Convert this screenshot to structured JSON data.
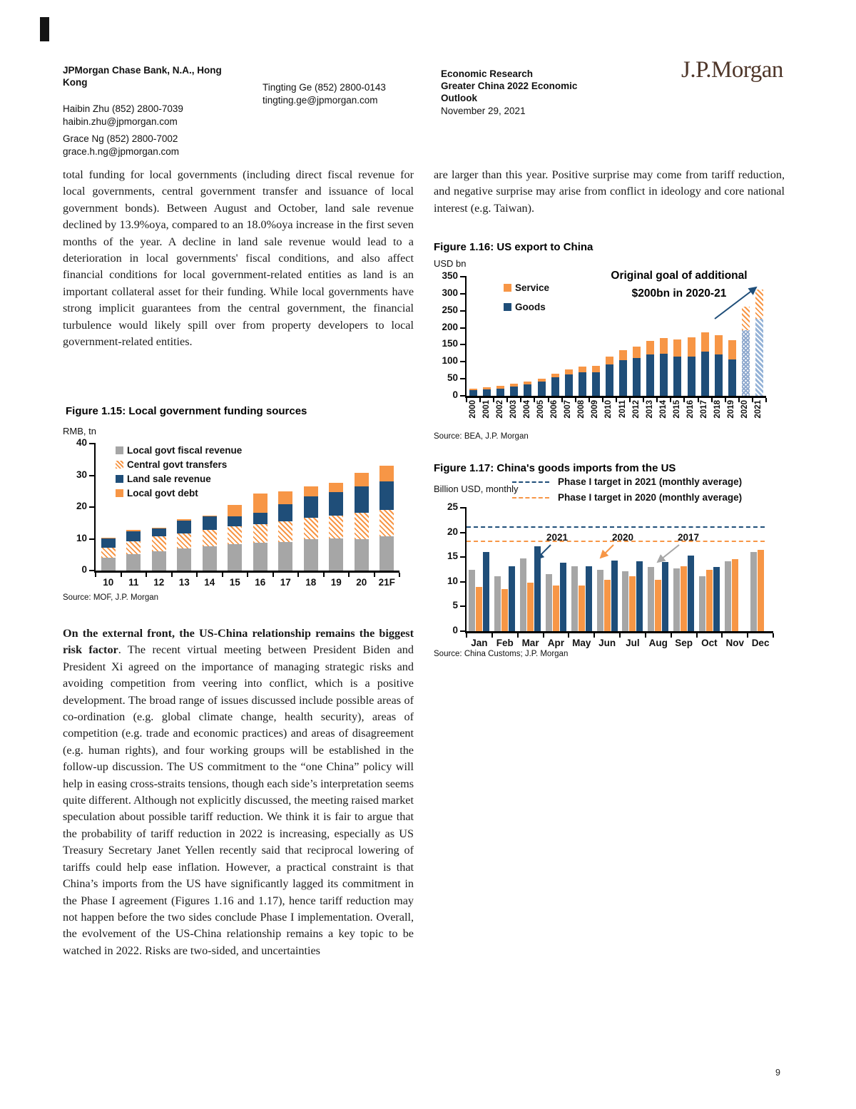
{
  "page": {
    "number": "9"
  },
  "header": {
    "left": {
      "org": "JPMorgan Chase Bank, N.A., Hong Kong",
      "contacts": [
        {
          "name": "Haibin Zhu (852) 2800-7039",
          "email": "haibin.zhu@jpmorgan.com"
        },
        {
          "name": "Grace Ng (852) 2800-7002",
          "email": "grace.h.ng@jpmorgan.com"
        },
        {
          "name": "Tingting Ge (852) 2800-0143",
          "email": "tingting.ge@jpmorgan.com"
        }
      ]
    },
    "right": {
      "line1": "Economic Research",
      "line2": "Greater China 2022 Economic Outlook",
      "line3": "November 29, 2021"
    },
    "logo": "J.P.Morgan",
    "logo_color": "#4E3629"
  },
  "left_column": {
    "para1": "total funding for local governments (including direct fiscal revenue for local governments, central government transfer and issuance of local government bonds). Between August and October, land sale revenue declined by 13.9%oya, compared to an 18.0%oya increase in the first seven months of the year. A decline in land sale revenue would lead to a deterioration in local governments' fiscal conditions, and also affect financial conditions for local government-related entities as land is an important collateral asset for their funding. While local governments have strong implicit guarantees from the central government, the financial turbulence would likely spill over from property developers to local government-related entities.",
    "para2_bold": "On the external front, the US-China relationship remains the biggest risk factor",
    "para2_rest": ". The recent virtual meeting between President Biden and President Xi agreed on the importance of managing strategic risks and avoiding competition from veering into conflict, which is a positive development. The broad range of issues discussed include possible areas of co-ordination (e.g. global climate change, health security), areas of competition (e.g. trade and economic practices) and areas of disagreement (e.g. human rights), and four working groups will be established in the follow-up discussion. The US commitment to the “one China” policy will help in easing cross-straits tensions, though each side’s interpretation seems quite different. Although not explicitly discussed, the meeting raised market speculation about possible tariff reduction. We think it is fair to argue that the probability of tariff reduction in 2022 is increasing, especially as US Treasury Secretary Janet Yellen recently said that reciprocal lowering of tariffs could help ease inflation. However, a practical constraint is that China’s imports from the US have significantly lagged its commitment in the Phase I agreement (Figures 1.16 and 1.17), hence tariff reduction may not happen before the two sides conclude Phase I implementation. Overall, the evolvement of the US-China relationship remains a key topic to be watched in 2022. Risks are two-sided, and uncertainties"
  },
  "right_column": {
    "para1": "are larger than this year. Positive surprise may come from tariff reduction, and negative surprise may arise from conflict in ideology and core national interest (e.g. Taiwan)."
  },
  "chart_data": [
    {
      "id": "fig115",
      "type": "bar",
      "stacked": true,
      "title": "Figure 1.15: Local government funding sources",
      "ylabel": "RMB, tn",
      "source": "Source: MOF, J.P. Morgan",
      "ylim": [
        0,
        40
      ],
      "yticks": [
        0,
        10,
        20,
        30,
        40
      ],
      "grid": false,
      "legend_position": "top-left-inside",
      "categories": [
        "10",
        "11",
        "12",
        "13",
        "14",
        "15",
        "16",
        "17",
        "18",
        "19",
        "20",
        "21F"
      ],
      "series": [
        {
          "name": "Local govt fiscal revenue",
          "color": "#A6A6A6",
          "pattern": "solid",
          "values": [
            4.1,
            5.2,
            6.1,
            6.9,
            7.6,
            8.3,
            8.7,
            9.1,
            9.8,
            10.1,
            10.0,
            10.7
          ]
        },
        {
          "name": "Central govt transfers",
          "color": "#F79646",
          "pattern": "hatch",
          "values": [
            3.2,
            4.0,
            4.7,
            4.8,
            5.3,
            5.6,
            5.9,
            6.4,
            6.8,
            7.3,
            8.2,
            8.5
          ]
        },
        {
          "name": "Land sale revenue",
          "color": "#1F4E79",
          "pattern": "solid",
          "values": [
            2.9,
            3.2,
            2.6,
            4.1,
            4.1,
            3.2,
            3.7,
            5.3,
            6.7,
            7.4,
            8.4,
            8.9
          ]
        },
        {
          "name": "Local govt debt",
          "color": "#F79646",
          "pattern": "solid",
          "values": [
            0.2,
            0.5,
            0.2,
            0.3,
            0.3,
            3.6,
            5.9,
            4.2,
            3.3,
            2.9,
            4.3,
            4.9
          ]
        }
      ]
    },
    {
      "id": "fig116",
      "type": "bar",
      "stacked": true,
      "title": "Figure 1.16: US export to China",
      "ylabel": "USD bn",
      "source": "Source: BEA, J.P. Morgan",
      "annotation": [
        "Original goal of additional",
        "$200bn in 2020-21"
      ],
      "ylim": [
        0,
        350
      ],
      "yticks": [
        0,
        50,
        100,
        150,
        200,
        250,
        300,
        350
      ],
      "grid": false,
      "rotate_xlabels": true,
      "legend_position": "top-left-inside",
      "categories": [
        "2000",
        "2001",
        "2002",
        "2003",
        "2004",
        "2005",
        "2006",
        "2007",
        "2008",
        "2009",
        "2010",
        "2011",
        "2012",
        "2013",
        "2014",
        "2015",
        "2016",
        "2017",
        "2018",
        "2019",
        "2020",
        "2021"
      ],
      "series": [
        {
          "name": "Goods",
          "color": "#1F4E79",
          "pattern": "solid",
          "values": [
            16,
            19,
            21,
            28,
            33,
            41,
            54,
            63,
            70,
            70,
            92,
            104,
            111,
            122,
            124,
            116,
            116,
            130,
            121,
            107,
            193,
            227
          ]
        },
        {
          "name": "Service",
          "color": "#F79646",
          "pattern": "solid",
          "values": [
            6,
            7,
            8,
            7,
            9,
            9,
            11,
            15,
            17,
            18,
            23,
            30,
            34,
            39,
            46,
            50,
            55,
            57,
            57,
            57,
            70,
            85
          ]
        }
      ],
      "target_bars": [
        {
          "category": "2020",
          "pattern": "dots",
          "note": "Phase I goal bar, hatched"
        },
        {
          "category": "2021",
          "pattern": "diag",
          "note": "Phase I goal bar, hatched"
        }
      ]
    },
    {
      "id": "fig117",
      "type": "bar",
      "grouped": true,
      "title": "Figure 1.17: China's goods imports from the US",
      "ylabel": "Billion USD, monthly",
      "source": "Source: China Customs; J.P. Morgan",
      "ylim": [
        0,
        25
      ],
      "yticks": [
        0,
        5,
        10,
        15,
        20,
        25
      ],
      "grid": false,
      "legend_position": "top-right",
      "categories": [
        "Jan",
        "Feb",
        "Mar",
        "Apr",
        "May",
        "Jun",
        "Jul",
        "Aug",
        "Sep",
        "Oct",
        "Nov",
        "Dec"
      ],
      "series": [
        {
          "name": "2017",
          "color": "#A6A6A6",
          "values": [
            12.4,
            11.2,
            14.8,
            11.5,
            13.2,
            12.4,
            12.1,
            13.0,
            12.7,
            11.1,
            14.2,
            16.1
          ]
        },
        {
          "name": "2020",
          "color": "#F79646",
          "values": [
            9.0,
            8.6,
            9.8,
            9.2,
            9.3,
            10.4,
            11.2,
            10.4,
            13.2,
            12.4,
            14.6,
            16.5
          ]
        },
        {
          "name": "2021",
          "color": "#1F4E79",
          "values": [
            16.0,
            13.2,
            17.2,
            13.9,
            13.1,
            14.3,
            14.1,
            14.0,
            15.3,
            13.0,
            null,
            null
          ]
        }
      ],
      "reference_lines": [
        {
          "label": "Phase I target in 2021 (monthly average)",
          "value": 21.2,
          "color": "#1F4E79"
        },
        {
          "label": "Phase I target in 2020 (monthly average)",
          "value": 18.3,
          "color": "#F79646"
        }
      ],
      "annotations": [
        {
          "text": "2021",
          "points_to": "blue 2021 bars"
        },
        {
          "text": "2020",
          "points_to": "orange 2020 bars"
        },
        {
          "text": "2017",
          "points_to": "gray 2017 bars"
        }
      ]
    }
  ]
}
